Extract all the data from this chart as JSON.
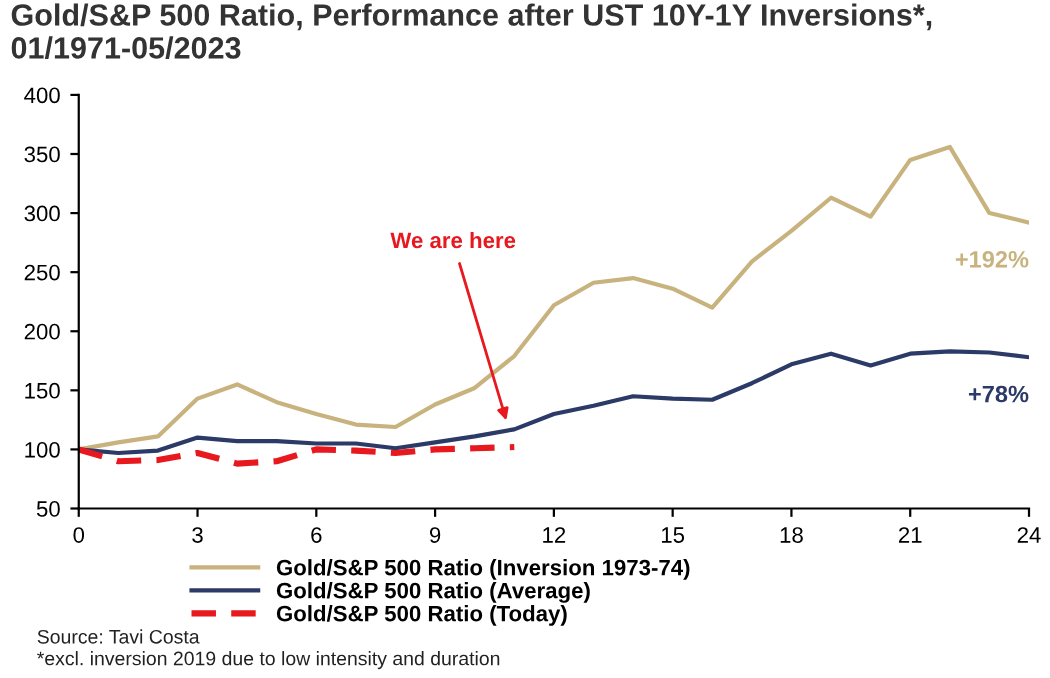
{
  "chart_data": {
    "type": "line",
    "title": "Gold/S&P 500 Ratio, Performance after UST 10Y-1Y Inversions*,\n01/1971-05/2023",
    "x": [
      0,
      1,
      2,
      3,
      4,
      5,
      6,
      7,
      8,
      9,
      10,
      11,
      12,
      13,
      14,
      15,
      16,
      17,
      18,
      19,
      20,
      21,
      22,
      23,
      24
    ],
    "series": [
      {
        "name": "Gold/S&P 500 Ratio (Inversion 1973-74)",
        "color": "#c8b27e",
        "line_style": "solid",
        "values": [
          100,
          106,
          111,
          143,
          155,
          140,
          130,
          121,
          119,
          138,
          152,
          179,
          222,
          241,
          245,
          236,
          220,
          259,
          285,
          313,
          297,
          345,
          356,
          300,
          292
        ]
      },
      {
        "name": "Gold/S&P 500 Ratio (Average)",
        "color": "#2b3a67",
        "line_style": "solid",
        "values": [
          100,
          97,
          99,
          110,
          107,
          107,
          105,
          105,
          101,
          106,
          111,
          117,
          130,
          137,
          145,
          143,
          142,
          156,
          172,
          181,
          171,
          181,
          183,
          182,
          178
        ]
      },
      {
        "name": "Gold/S&P 500 Ratio (Today)",
        "color": "#e8191e",
        "line_style": "dashed",
        "values": [
          100,
          90,
          91,
          97,
          88,
          90,
          100,
          99,
          97,
          100,
          101,
          102,
          null,
          null,
          null,
          null,
          null,
          null,
          null,
          null,
          null,
          null,
          null,
          null,
          null
        ]
      }
    ],
    "xlim": [
      0,
      24
    ],
    "xticks": [
      0,
      3,
      6,
      9,
      12,
      15,
      18,
      21,
      24
    ],
    "ylim": [
      50,
      400
    ],
    "yticks": [
      50,
      100,
      150,
      200,
      250,
      300,
      350,
      400
    ],
    "grid": false,
    "legend": "bottom",
    "marker": "none",
    "annotations": [
      "We are here",
      "+192%",
      "+78%",
      "Source: Tavi Costa",
      "*excl. inversion 2019 due to low intensity and duration"
    ]
  }
}
